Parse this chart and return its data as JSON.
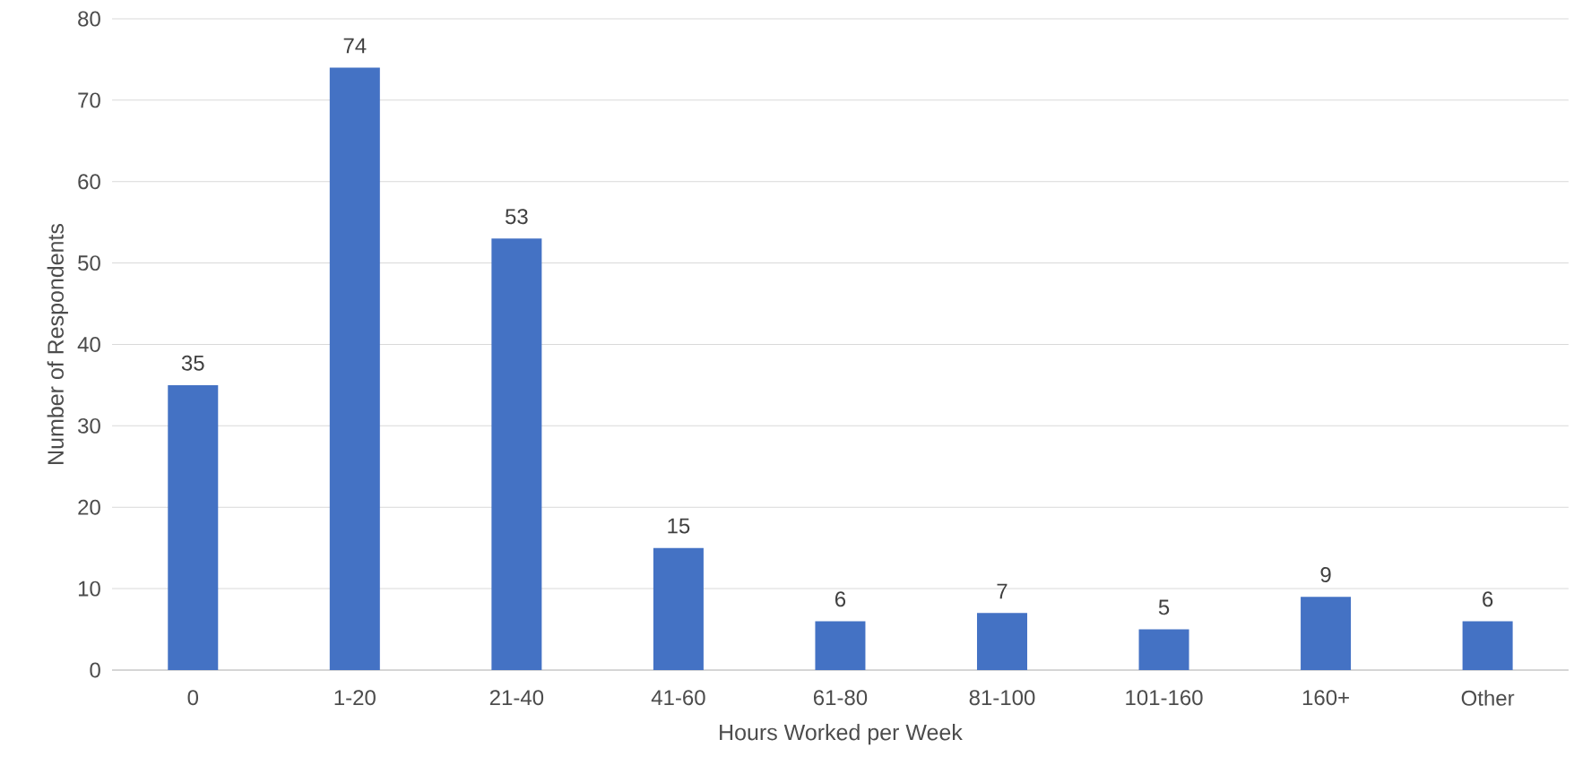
{
  "chart_data": {
    "type": "bar",
    "xlabel": "Hours Worked per Week",
    "ylabel": "Number of Respondents",
    "categories": [
      "0",
      "1-20",
      "21-40",
      "41-60",
      "61-80",
      "81-100",
      "101-160",
      "160+",
      "Other"
    ],
    "values": [
      35,
      74,
      53,
      15,
      6,
      7,
      5,
      9,
      6
    ],
    "value_labels": [
      "35",
      "74",
      "53",
      "15",
      "6",
      "7",
      "5",
      "9",
      "6"
    ],
    "color": "#4472c4",
    "ylim": [
      0,
      80
    ],
    "yticks": [
      0,
      10,
      20,
      30,
      40,
      50,
      60,
      70,
      80
    ],
    "grid": "y"
  }
}
